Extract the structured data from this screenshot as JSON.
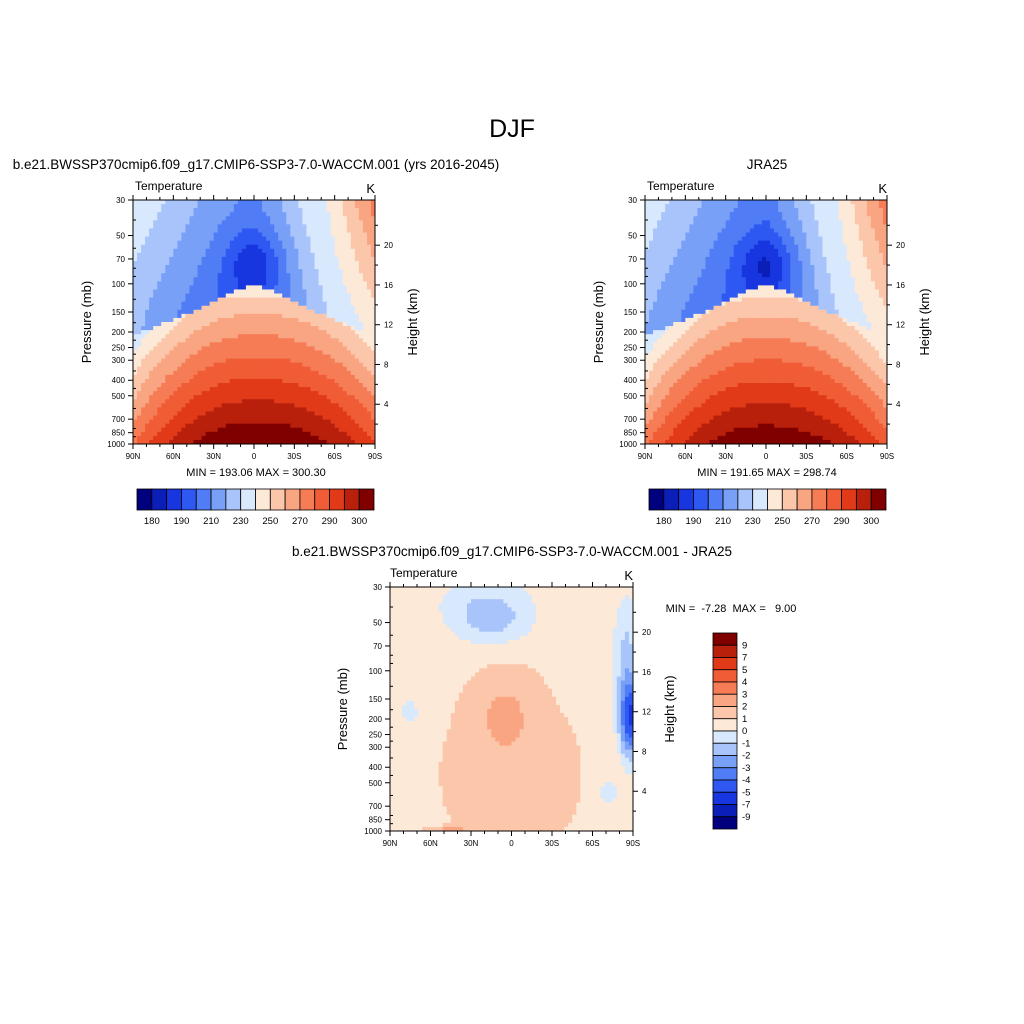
{
  "page": {
    "title": "DJF"
  },
  "units": "K",
  "palettes": {
    "full": [
      "#00007f",
      "#0b1fb8",
      "#1836e0",
      "#2f58f2",
      "#507cf5",
      "#78a0f7",
      "#a8c4fa",
      "#d8e8fd",
      "#fde9d8",
      "#fcc6ab",
      "#f9a582",
      "#f67c56",
      "#f05c35",
      "#e03a18",
      "#b8200c",
      "#800000"
    ],
    "diff": [
      "#00007f",
      "#0b1fb8",
      "#1836e0",
      "#2f58f2",
      "#507cf5",
      "#78a0f7",
      "#a8c4fa",
      "#d8e8fd",
      "#fde9d8",
      "#fcc6ab",
      "#f9a582",
      "#f67c56",
      "#f05c35",
      "#e03a18",
      "#b8200c",
      "#800000"
    ]
  },
  "chart_data": [
    {
      "type": "heatmap",
      "title": "b.e21.BWSSP370cmip6.f09_g17.CMIP6-SSP3-7.0-WACCM.001 (yrs 2016-2045)",
      "left_label": "Temperature",
      "right_label": "K",
      "ylabel": "Pressure (mb)",
      "y2label": "Height (km)",
      "x_ticks": [
        "90N",
        "60N",
        "30N",
        "0",
        "30S",
        "60S",
        "90S"
      ],
      "y_ticks": [
        "30",
        "50",
        "70",
        "100",
        "150",
        "200",
        "250",
        "300",
        "400",
        "500",
        "700",
        "850",
        "1000"
      ],
      "y_tick_values": [
        30,
        50,
        70,
        100,
        150,
        200,
        250,
        300,
        400,
        500,
        700,
        850,
        1000
      ],
      "y2_ticks": [
        "20",
        "16",
        "12",
        "8",
        "4"
      ],
      "y2_tick_values": [
        20,
        16,
        12,
        8,
        4
      ],
      "xlim": [
        90,
        -90
      ],
      "ylim": [
        1000,
        30
      ],
      "y_scale": "log",
      "stats": "MIN = 193.06  MAX = 300.30",
      "levels": [
        180,
        185,
        190,
        195,
        200,
        205,
        210,
        220,
        230,
        240,
        250,
        260,
        270,
        280,
        290,
        300
      ],
      "colorbar": {
        "orientation": "horizontal",
        "labels": [
          "180",
          "190",
          "210",
          "230",
          "250",
          "270",
          "290",
          "300"
        ]
      },
      "field": {
        "surf": 300,
        "sh": 1.0,
        "pole_s": 30,
        "pole_n": 40,
        "strat_n": 205,
        "strat_s": 222,
        "core": 193,
        "nh_tp": 8
      }
    },
    {
      "type": "heatmap",
      "title": "JRA25",
      "left_label": "Temperature",
      "right_label": "K",
      "ylabel": "Pressure (mb)",
      "y2label": "Height (km)",
      "x_ticks": [
        "90N",
        "60N",
        "30N",
        "0",
        "30S",
        "60S",
        "90S"
      ],
      "y_ticks": [
        "30",
        "50",
        "70",
        "100",
        "150",
        "200",
        "250",
        "300",
        "400",
        "500",
        "700",
        "850",
        "1000"
      ],
      "y_tick_values": [
        30,
        50,
        70,
        100,
        150,
        200,
        250,
        300,
        400,
        500,
        700,
        850,
        1000
      ],
      "y2_ticks": [
        "20",
        "16",
        "12",
        "8",
        "4"
      ],
      "y2_tick_values": [
        20,
        16,
        12,
        8,
        4
      ],
      "xlim": [
        90,
        -90
      ],
      "ylim": [
        1000,
        30
      ],
      "y_scale": "log",
      "stats": "MIN = 191.65  MAX = 298.74",
      "levels": [
        180,
        185,
        190,
        195,
        200,
        205,
        210,
        220,
        230,
        240,
        250,
        260,
        270,
        280,
        290,
        300
      ],
      "colorbar": {
        "orientation": "horizontal",
        "labels": [
          "180",
          "190",
          "210",
          "230",
          "250",
          "270",
          "290",
          "300"
        ]
      },
      "field": {
        "surf": 298.5,
        "sh": 0.0,
        "pole_s": 32,
        "pole_n": 41,
        "strat_n": 204,
        "strat_s": 224,
        "core": 191.7,
        "nh_tp": 6
      }
    },
    {
      "type": "heatmap",
      "title": "b.e21.BWSSP370cmip6.f09_g17.CMIP6-SSP3-7.0-WACCM.001 - JRA25",
      "left_label": "Temperature",
      "right_label": "K",
      "ylabel": "Pressure (mb)",
      "y2label": "Height (km)",
      "x_ticks": [
        "90N",
        "60N",
        "30N",
        "0",
        "30S",
        "60S",
        "90S"
      ],
      "y_ticks": [
        "30",
        "50",
        "70",
        "100",
        "150",
        "200",
        "250",
        "300",
        "400",
        "500",
        "700",
        "850",
        "1000"
      ],
      "y_tick_values": [
        30,
        50,
        70,
        100,
        150,
        200,
        250,
        300,
        400,
        500,
        700,
        850,
        1000
      ],
      "y2_ticks": [
        "20",
        "16",
        "12",
        "8",
        "4"
      ],
      "y2_tick_values": [
        20,
        16,
        12,
        8,
        4
      ],
      "xlim": [
        90,
        -90
      ],
      "ylim": [
        1000,
        30
      ],
      "y_scale": "log",
      "stats": "MIN =  -7.28  MAX =   9.00",
      "levels": [
        -9,
        -7,
        -5,
        -4,
        -3,
        -2,
        -1,
        0,
        1,
        2,
        3,
        4,
        5,
        7,
        9
      ],
      "colorbar": {
        "orientation": "vertical",
        "labels": [
          "9",
          "7",
          "5",
          "4",
          "3",
          "2",
          "1",
          "0",
          "-1",
          "-2",
          "-3",
          "-4",
          "-5",
          "-7",
          "-9"
        ]
      }
    }
  ]
}
